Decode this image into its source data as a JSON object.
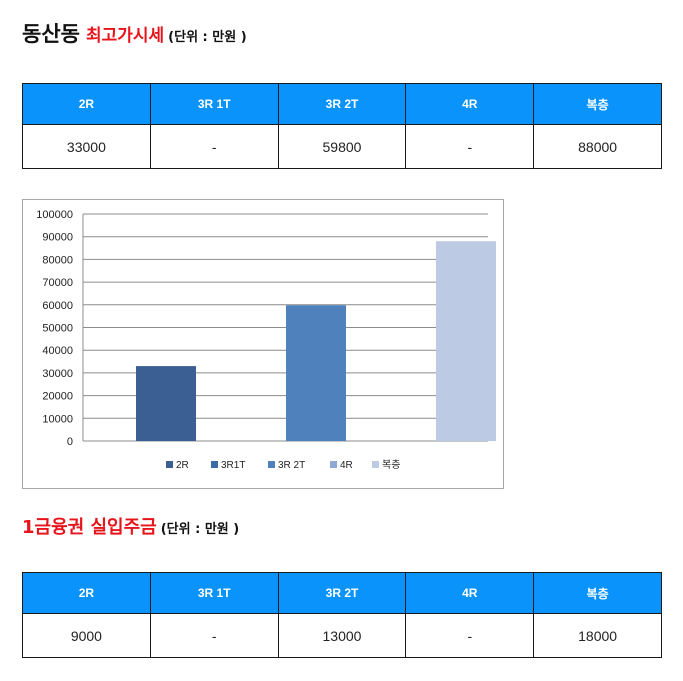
{
  "section1": {
    "title": "동산동",
    "subtitle": "최고가시세",
    "unit": "(단위 : 만원 )",
    "headers": [
      "2R",
      "3R 1T",
      "3R 2T",
      "4R",
      "복층"
    ],
    "values": [
      "33000",
      "-",
      "59800",
      "-",
      "88000"
    ]
  },
  "section2": {
    "title": "1금융권 실입주금",
    "unit": "(단위 : 만원 )",
    "headers": [
      "2R",
      "3R 1T",
      "3R 2T",
      "4R",
      "복층"
    ],
    "values": [
      "9000",
      "-",
      "13000",
      "-",
      "18000"
    ]
  },
  "colors": {
    "header_bg": "#0a94fb",
    "accent_red": "#e8141b"
  },
  "chart_data": {
    "type": "bar",
    "title": "",
    "xlabel": "",
    "ylabel": "",
    "ylim": [
      0,
      100000
    ],
    "y_ticks": [
      0,
      10000,
      20000,
      30000,
      40000,
      50000,
      60000,
      70000,
      80000,
      90000,
      100000
    ],
    "grid": true,
    "legend_position": "bottom",
    "series": [
      {
        "name": "2R",
        "value": 33000,
        "color": "#3b5f92"
      },
      {
        "name": "3R1T",
        "value": null,
        "color": "#3a6aa8"
      },
      {
        "name": "3R 2T",
        "value": 59800,
        "color": "#4f81bd"
      },
      {
        "name": "4R",
        "value": null,
        "color": "#8ea9d2"
      },
      {
        "name": "복층",
        "value": 88000,
        "color": "#bccbe3"
      }
    ]
  }
}
